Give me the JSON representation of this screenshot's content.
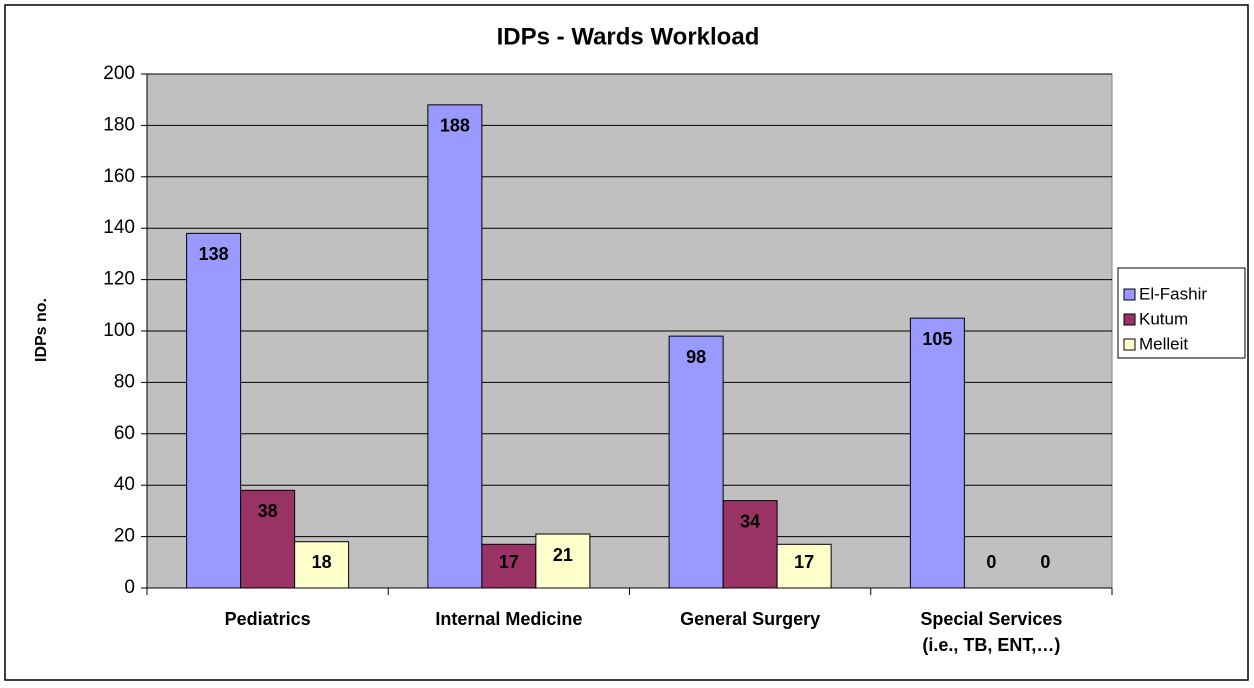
{
  "chart_data": {
    "type": "bar",
    "title": "IDPs  - Wards Workload",
    "y_label": "IDPs no.",
    "categories": [
      "Pediatrics",
      "Internal Medicine",
      "General Surgery",
      "Special Services\n(i.e., TB, ENT,…)"
    ],
    "series": [
      {
        "name": "El-Fashir",
        "color": "#9999ff",
        "values": [
          138,
          188,
          98,
          105
        ]
      },
      {
        "name": "Kutum",
        "color": "#993366",
        "values": [
          38,
          17,
          34,
          0
        ]
      },
      {
        "name": "Melleit",
        "color": "#ffffcc",
        "values": [
          18,
          21,
          17,
          0
        ]
      }
    ],
    "ylim": [
      0,
      200
    ],
    "yticks": [
      0,
      20,
      40,
      60,
      80,
      100,
      120,
      140,
      160,
      180,
      200
    ],
    "grid": true,
    "legend": "right"
  }
}
